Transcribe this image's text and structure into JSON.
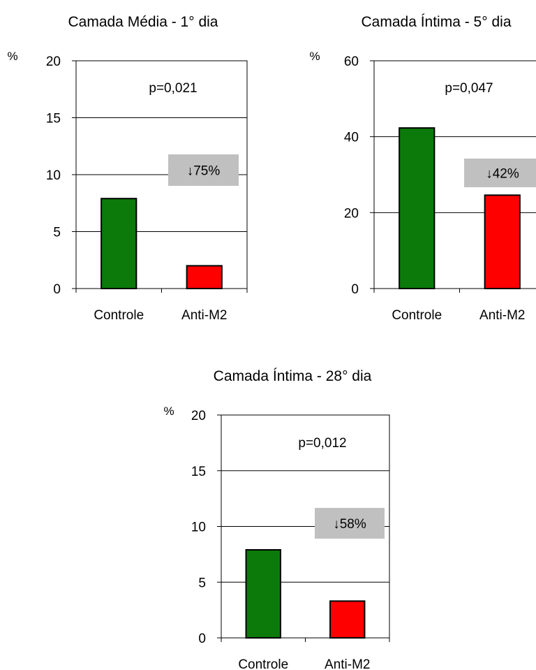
{
  "colors": {
    "controle": "#0B7A0B",
    "anti_m2": "#FF0000",
    "annotation_box": "#C0C0C0"
  },
  "chart_data": [
    {
      "type": "bar",
      "title": "Camada Média - 1° dia",
      "ylabel": "%",
      "categories": [
        "Controle",
        "Anti-M2"
      ],
      "values": [
        7.9,
        2.0
      ],
      "ylim": [
        0,
        20
      ],
      "yticks": [
        0,
        5,
        10,
        15,
        20
      ],
      "grid": true,
      "p_value": "p=0,021",
      "reduction": "↓75%"
    },
    {
      "type": "bar",
      "title": "Camada Íntima - 5° dia",
      "ylabel": "%",
      "categories": [
        "Controle",
        "Anti-M2"
      ],
      "values": [
        42.3,
        24.6
      ],
      "ylim": [
        0,
        60
      ],
      "yticks": [
        0,
        20,
        40,
        60
      ],
      "grid": true,
      "p_value": "p=0,047",
      "reduction": "↓42%"
    },
    {
      "type": "bar",
      "title": "Camada Íntima - 28° dia",
      "ylabel": "%",
      "categories": [
        "Controle",
        "Anti-M2"
      ],
      "values": [
        7.9,
        3.3
      ],
      "ylim": [
        0,
        20
      ],
      "yticks": [
        0,
        5,
        10,
        15,
        20
      ],
      "grid": true,
      "p_value": "p=0,012",
      "reduction": "↓58%"
    }
  ]
}
